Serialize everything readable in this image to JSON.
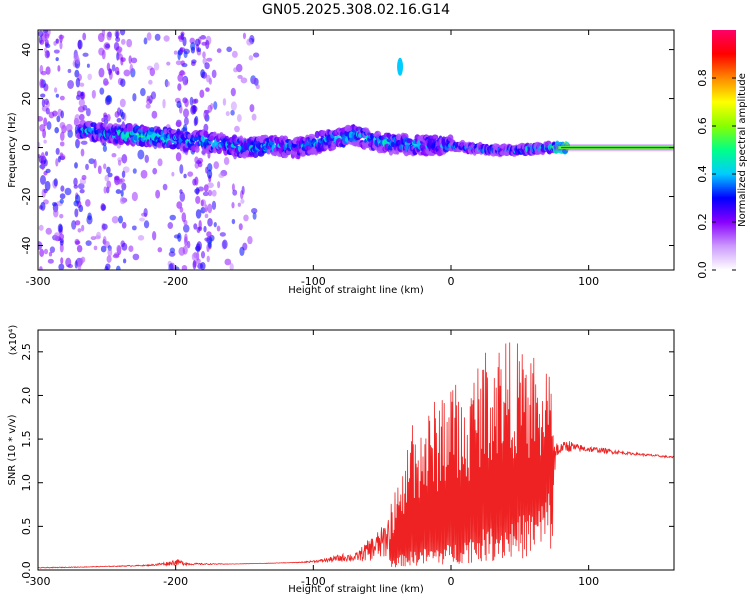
{
  "figure": {
    "title": "GN05.2025.308.02.16.G14"
  },
  "chart_data": [
    {
      "type": "heatmap",
      "title": "GN05.2025.308.02.16.G14",
      "xlabel": "Height of straight line (km)",
      "ylabel": "Frequency (Hz)",
      "xlim": [
        -300,
        162
      ],
      "ylim": [
        -50,
        48
      ],
      "x_ticks": [
        -300,
        -200,
        -100,
        0,
        100
      ],
      "y_ticks": [
        -40,
        -20,
        0,
        20,
        40
      ],
      "x_tick_labels": [
        "-300",
        "-200",
        "-100",
        "0",
        "100"
      ],
      "y_tick_labels": [
        "-40",
        "-20",
        "0",
        "20",
        "40"
      ],
      "colorbar": {
        "label": "Normalized spectral amplitude",
        "range": [
          0,
          1
        ],
        "ticks": [
          0.0,
          0.2,
          0.4,
          0.6,
          0.8
        ],
        "tick_labels": [
          "0.0",
          "0.2",
          "0.4",
          "0.6",
          "0.8"
        ],
        "colormap": [
          "#ffffff",
          "#cc99ff",
          "#8800ff",
          "#0000ff",
          "#00ccff",
          "#00ff88",
          "#88ff00",
          "#ffff00",
          "#ff8800",
          "#ff0000",
          "#ff0066"
        ]
      },
      "ridge": {
        "description": "dominant frequency band vs height",
        "x": [
          -270,
          -250,
          -230,
          -210,
          -190,
          -170,
          -150,
          -130,
          -110,
          -90,
          -70,
          -50,
          -30,
          -10,
          10,
          30,
          50,
          70,
          90,
          110,
          130,
          150,
          162
        ],
        "freq": [
          7,
          6,
          5,
          4,
          3,
          2,
          0,
          1,
          0,
          3,
          5,
          2,
          1,
          1,
          0,
          -1,
          -1,
          0,
          0,
          0,
          0,
          0,
          0
        ],
        "amplitude": [
          0.5,
          0.5,
          0.55,
          0.55,
          0.5,
          0.5,
          0.5,
          0.5,
          0.45,
          0.5,
          0.5,
          0.5,
          0.5,
          0.45,
          0.45,
          0.45,
          0.45,
          0.5,
          0.95,
          0.95,
          0.95,
          0.95,
          0.95
        ]
      },
      "isolated_blob": {
        "x": -37,
        "freq": 33
      },
      "noise_columns_x": [
        -295,
        -285,
        -270,
        -250,
        -240,
        -195,
        -185,
        -178
      ]
    },
    {
      "type": "line",
      "xlabel": "Height of straight line (km)",
      "ylabel": "SNR (10 * v/v)",
      "y_scale_note": "(x10⁴)",
      "xlim": [
        -300,
        162
      ],
      "ylim": [
        0,
        2.75
      ],
      "x_ticks": [
        -300,
        -200,
        -100,
        0,
        100
      ],
      "y_ticks": [
        0.0,
        0.5,
        1.0,
        1.5,
        2.0,
        2.5
      ],
      "x_tick_labels": [
        "-300",
        "-200",
        "-100",
        "0",
        "100"
      ],
      "y_tick_labels": [
        "0.0",
        "0.5",
        "1.0",
        "1.5",
        "2.0",
        "2.5"
      ],
      "color": "#ee2222",
      "envelope": {
        "x": [
          -300,
          -260,
          -220,
          -205,
          -200,
          -190,
          -160,
          -130,
          -110,
          -95,
          -85,
          -75,
          -70,
          -60,
          -50,
          -45,
          -40,
          -33,
          -30,
          -20,
          -10,
          0,
          10,
          20,
          30,
          40,
          45,
          50,
          55,
          60,
          65,
          70,
          75,
          80,
          85,
          90,
          100,
          110,
          130,
          150,
          162
        ],
        "y": [
          0.03,
          0.04,
          0.06,
          0.1,
          0.13,
          0.08,
          0.07,
          0.08,
          0.09,
          0.12,
          0.16,
          0.2,
          0.18,
          0.35,
          0.5,
          0.7,
          0.95,
          1.2,
          1.85,
          1.75,
          2.0,
          2.3,
          1.9,
          2.5,
          2.6,
          2.72,
          2.55,
          2.65,
          2.25,
          2.55,
          1.95,
          2.55,
          1.6,
          1.45,
          1.5,
          1.45,
          1.42,
          1.4,
          1.35,
          1.32,
          1.3
        ]
      },
      "floor": {
        "x": [
          -300,
          -60,
          -50,
          -40,
          -33,
          -20,
          0,
          20,
          40,
          60,
          70,
          75,
          80,
          90,
          100,
          130,
          162
        ],
        "y": [
          0.02,
          0.1,
          0.12,
          0.15,
          0.2,
          0.25,
          0.3,
          0.45,
          0.55,
          0.7,
          0.9,
          1.1,
          1.35,
          1.35,
          1.35,
          1.32,
          1.28
        ]
      }
    }
  ]
}
